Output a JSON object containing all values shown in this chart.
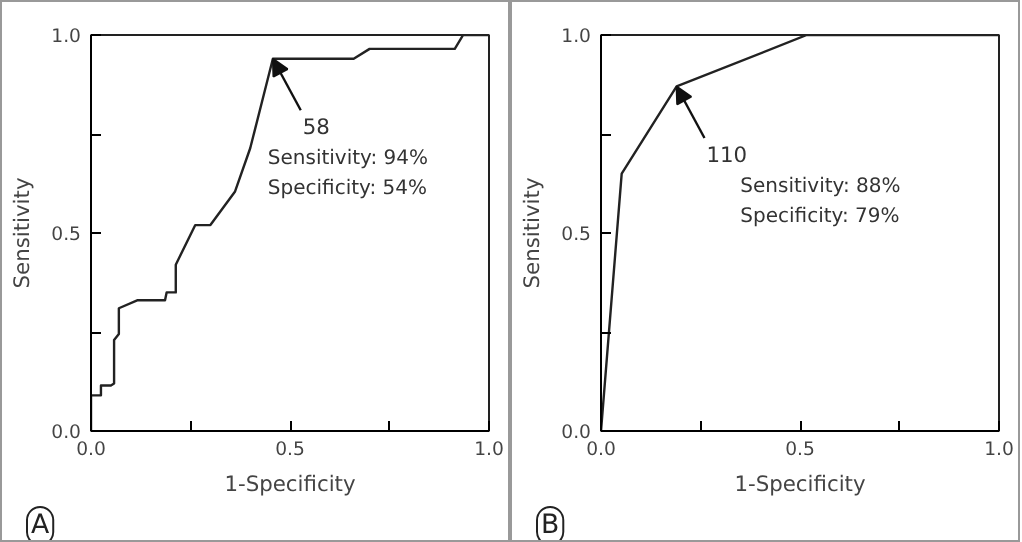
{
  "chart_data": [
    {
      "type": "line",
      "title": "A",
      "xlabel": "1-Specificity",
      "ylabel": "Sensitivity",
      "x": [
        0,
        0,
        0.025,
        0.025,
        0.05,
        0.058,
        0.058,
        0.07,
        0.07,
        0.116,
        0.186,
        0.19,
        0.213,
        0.213,
        0.262,
        0.3,
        0.362,
        0.4,
        0.457,
        0.66,
        0.7,
        0.914,
        0.935,
        1
      ],
      "series": [
        {
          "color": "#222222",
          "values": [
            0,
            0.09,
            0.09,
            0.115,
            0.115,
            0.12,
            0.23,
            0.245,
            0.31,
            0.33,
            0.33,
            0.35,
            0.35,
            0.42,
            0.52,
            0.52,
            0.605,
            0.714,
            0.94,
            0.94,
            0.965,
            0.965,
            1,
            1
          ]
        }
      ],
      "xlim": [
        0,
        1
      ],
      "ylim": [
        0,
        1
      ],
      "xticks": [
        {
          "value": 0,
          "label": "0.0"
        },
        {
          "value": 0.25,
          "label": null
        },
        0.5,
        {
          "value": 0.75,
          "label": null
        },
        {
          "value": 1,
          "label": "1.0"
        }
      ],
      "yticks": [
        {
          "value": 0,
          "label": "0.0"
        },
        {
          "value": 0.25,
          "label": null
        },
        0.5,
        {
          "value": 0.75,
          "label": null
        },
        {
          "value": 1,
          "label": "1.0"
        }
      ],
      "grid": false,
      "annotations": [
        {
          "text": "58",
          "x": 0.457,
          "y": 0.94
        },
        "Sensitivity: 94%",
        "Specificity: 54%"
      ]
    },
    {
      "type": "line",
      "title": "B",
      "xlabel": "1-Specificity",
      "ylabel": "Sensitivity",
      "x": [
        0,
        0.052,
        0.19,
        0.517,
        1
      ],
      "series": [
        {
          "color": "#222222",
          "values": [
            0,
            0.65,
            0.87,
            1,
            1
          ]
        }
      ],
      "xlim": [
        0,
        1
      ],
      "ylim": [
        0,
        1
      ],
      "xticks": [
        {
          "value": 0,
          "label": "0.0"
        },
        {
          "value": 0.25,
          "label": null
        },
        0.5,
        {
          "value": 0.75,
          "label": null
        },
        {
          "value": 1,
          "label": "1.0"
        }
      ],
      "yticks": [
        {
          "value": 0,
          "label": "0.0"
        },
        {
          "value": 0.25,
          "label": null
        },
        0.5,
        {
          "value": 0.75,
          "label": null
        },
        {
          "value": 1,
          "label": "1.0"
        }
      ],
      "grid": false,
      "annotations": [
        {
          "text": "110",
          "x": 0.19,
          "y": 0.87
        },
        "Sensitivity: 88%",
        "Specificity: 79%"
      ]
    }
  ]
}
